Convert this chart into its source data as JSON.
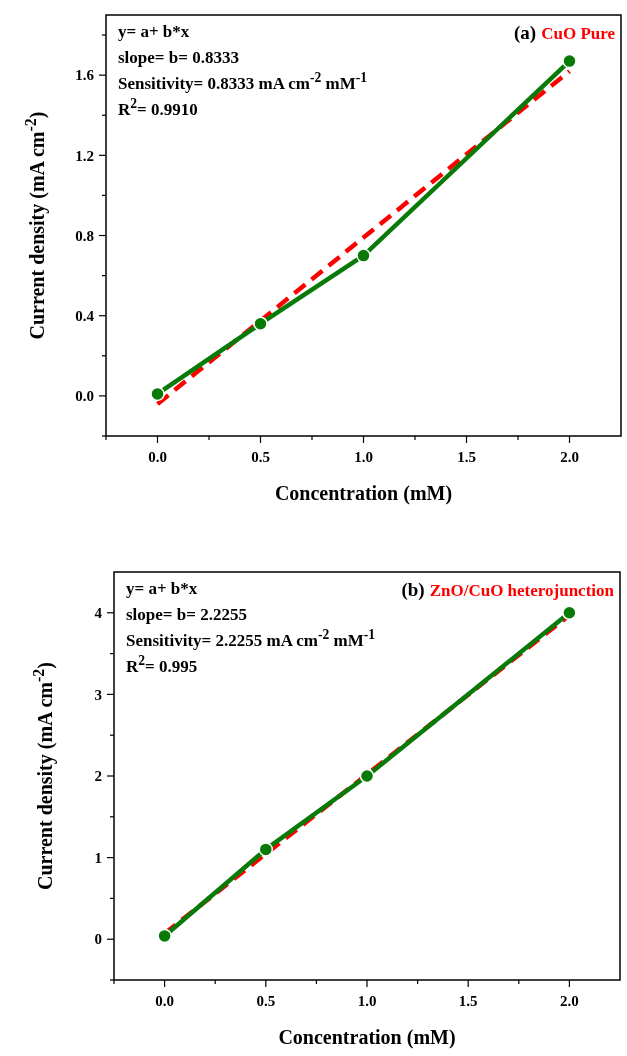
{
  "chart_data": [
    {
      "type": "line",
      "title": "(a)",
      "subtitle": "CuO Pure",
      "xlabel": "Concentration (mM)",
      "ylabel": "Current density (mA cm$^{-2}$)",
      "annotations": [
        "y= a+ b*x",
        "slope= b= 0.8333",
        "Sensitivity= 0.8333 mA cm$^{-2}$ mM$^{-1}$",
        "R$^{2}$= 0.9910"
      ],
      "xlim": [
        -0.25,
        2.25
      ],
      "ylim": [
        -0.2,
        1.9
      ],
      "xticks": [
        {
          "value": -0.25,
          "label": null
        },
        {
          "value": 0,
          "label": "0.0"
        },
        {
          "value": 0.25,
          "label": null
        },
        {
          "value": 0.5,
          "label": "0.5"
        },
        {
          "value": 0.75,
          "label": null
        },
        {
          "value": 1,
          "label": "1.0"
        },
        {
          "value": 1.25,
          "label": null
        },
        {
          "value": 1.5,
          "label": "1.5"
        },
        {
          "value": 1.75,
          "label": null
        },
        {
          "value": 2,
          "label": "2.0"
        }
      ],
      "yticks": [
        {
          "value": -0.2,
          "label": null
        },
        {
          "value": 0,
          "label": "0.0"
        },
        {
          "value": 0.2,
          "label": null
        },
        {
          "value": 0.4,
          "label": "0.4"
        },
        {
          "value": 0.6,
          "label": null
        },
        {
          "value": 0.8,
          "label": "0.8"
        },
        {
          "value": 1.0,
          "label": null
        },
        {
          "value": 1.2,
          "label": "1.2"
        },
        {
          "value": 1.4,
          "label": null
        },
        {
          "value": 1.6,
          "label": "1.6"
        },
        {
          "value": 1.8,
          "label": null
        }
      ],
      "grid": false,
      "series": [
        {
          "x": [
            0,
            2
          ],
          "values": [
            -0.04,
            1.62
          ],
          "color": "#ff0000",
          "line_style": "dashed",
          "marker": "none"
        },
        {
          "x": [
            0,
            0.5,
            1,
            2
          ],
          "values": [
            0.01,
            0.36,
            0.7,
            1.67
          ],
          "color": "#087a08",
          "line_style": "solid",
          "marker": "circle"
        }
      ]
    },
    {
      "type": "line",
      "title": "(b)",
      "subtitle": "ZnO/CuO heterojunction",
      "xlabel": "Concentration (mM)",
      "ylabel": "Current density (mA cm$^{-2}$)",
      "annotations": [
        "y= a+ b*x",
        "slope= b= 2.2255",
        "Sensitivity= 2.2255 mA cm$^{-2}$ mM$^{-1}$",
        "R$^{2}$= 0.995"
      ],
      "xlim": [
        -0.25,
        2.25
      ],
      "ylim": [
        -0.5,
        4.5
      ],
      "xticks": [
        {
          "value": -0.25,
          "label": null
        },
        {
          "value": 0,
          "label": "0.0"
        },
        {
          "value": 0.25,
          "label": null
        },
        {
          "value": 0.5,
          "label": "0.5"
        },
        {
          "value": 0.75,
          "label": null
        },
        {
          "value": 1,
          "label": "1.0"
        },
        {
          "value": 1.25,
          "label": null
        },
        {
          "value": 1.5,
          "label": "1.5"
        },
        {
          "value": 1.75,
          "label": null
        },
        {
          "value": 2,
          "label": "2.0"
        }
      ],
      "yticks": [
        {
          "value": -0.5,
          "label": null
        },
        0,
        {
          "value": 0.5,
          "label": null
        },
        1,
        {
          "value": 1.5,
          "label": null
        },
        2,
        {
          "value": 2.5,
          "label": null
        },
        3,
        {
          "value": 3.5,
          "label": null
        },
        4
      ],
      "grid": false,
      "series": [
        {
          "x": [
            0,
            2
          ],
          "values": [
            0.07,
            3.97
          ],
          "color": "#ff0000",
          "line_style": "dashed",
          "marker": "none"
        },
        {
          "x": [
            0,
            0.5,
            1,
            2
          ],
          "values": [
            0.04,
            1.1,
            2.0,
            4.0
          ],
          "color": "#087a08",
          "line_style": "solid",
          "marker": "circle"
        }
      ]
    }
  ]
}
